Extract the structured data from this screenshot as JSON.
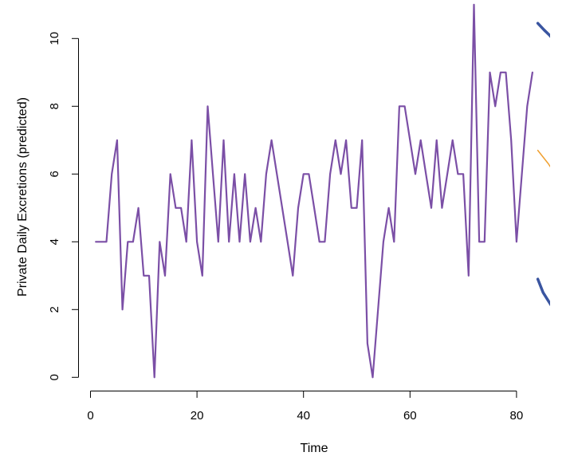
{
  "chart_data": {
    "type": "line",
    "title": "",
    "xlabel": "Time",
    "ylabel": "Private Daily Excretions (predicted)",
    "xlim": [
      0,
      85
    ],
    "ylim": [
      0,
      11
    ],
    "xticks": [
      0,
      20,
      40,
      60,
      80
    ],
    "yticks": [
      0,
      2,
      4,
      6,
      8,
      10
    ],
    "grid": false,
    "legend": "none",
    "series": [
      {
        "color": "#7b4fa6",
        "x": [
          1,
          2,
          3,
          4,
          5,
          6,
          7,
          8,
          9,
          10,
          11,
          12,
          13,
          14,
          15,
          16,
          17,
          18,
          19,
          20,
          21,
          22,
          23,
          24,
          25,
          26,
          27,
          28,
          29,
          30,
          31,
          32,
          33,
          34,
          35,
          36,
          37,
          38,
          39,
          40,
          41,
          42,
          43,
          44,
          45,
          46,
          47,
          48,
          49,
          50,
          51,
          52,
          53,
          54,
          55,
          56,
          57,
          58,
          59,
          60,
          61,
          62,
          63,
          64,
          65,
          66,
          67,
          68,
          69,
          70,
          71,
          72,
          73,
          74,
          75,
          76,
          77,
          78,
          79,
          80,
          81,
          82,
          83
        ],
        "y": [
          4,
          4,
          4,
          6,
          7,
          2,
          4,
          4,
          5,
          3,
          3,
          0,
          4,
          3,
          6,
          5,
          5,
          4,
          7,
          4,
          3,
          8,
          6,
          4,
          7,
          4,
          6,
          4,
          6,
          4,
          5,
          4,
          6,
          7,
          6,
          5,
          4,
          3,
          5,
          6,
          6,
          5,
          4,
          4,
          6,
          7,
          6,
          7,
          5,
          5,
          7,
          1,
          0,
          2,
          4,
          5,
          4,
          8,
          8,
          7,
          6,
          7,
          6,
          5,
          7,
          5,
          6,
          7,
          6,
          6,
          3,
          11,
          4,
          4,
          9,
          8,
          9,
          9,
          7,
          4,
          6,
          8,
          9
        ]
      }
    ],
    "forecast_upper": {
      "color": "#3a55a0",
      "x": [
        84,
        85.2,
        86.2,
        87
      ],
      "y": [
        10.45,
        10.25,
        10.1,
        9.95
      ]
    },
    "forecast_mean": {
      "color": "#f0a030",
      "x": [
        84,
        85,
        86,
        87
      ],
      "y": [
        6.7,
        6.5,
        6.3,
        6.05
      ]
    },
    "forecast_lower": {
      "color": "#3a55a0",
      "x": [
        84,
        85,
        86,
        87
      ],
      "y": [
        2.9,
        2.5,
        2.25,
        2.0
      ]
    }
  }
}
